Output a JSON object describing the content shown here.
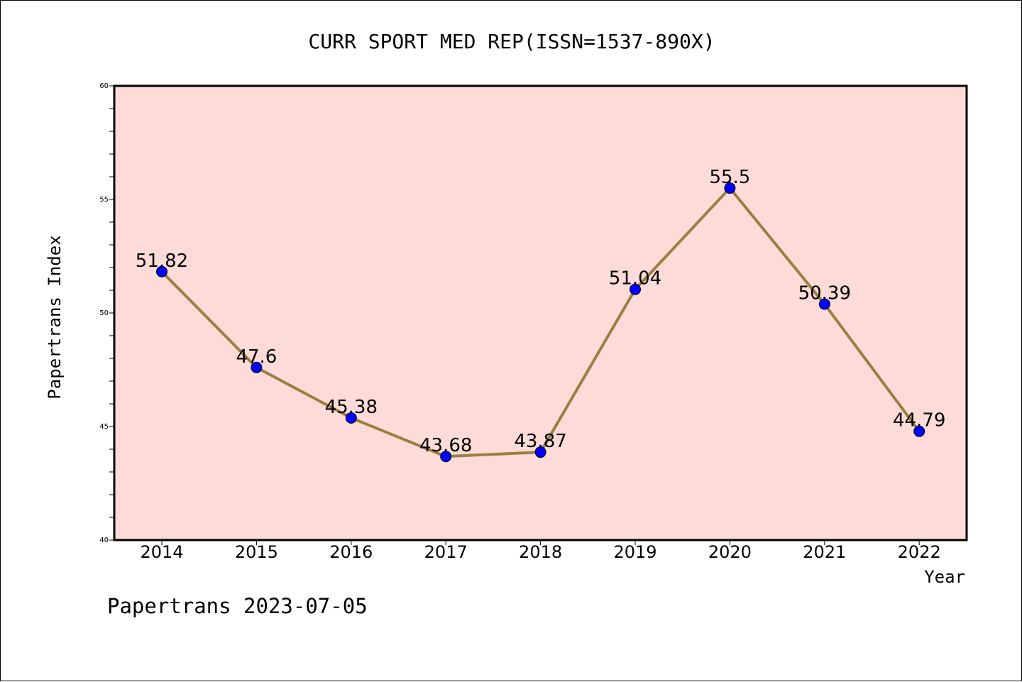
{
  "chart_data": {
    "type": "line",
    "title": "CURR SPORT MED REP(ISSN=1537-890X)",
    "xlabel": "Year",
    "ylabel": "Papertrans Index",
    "categories": [
      "2014",
      "2015",
      "2016",
      "2017",
      "2018",
      "2019",
      "2020",
      "2021",
      "2022"
    ],
    "series": [
      {
        "values": [
          51.82,
          47.6,
          45.38,
          43.68,
          43.87,
          51.04,
          55.5,
          50.39,
          44.79
        ],
        "labels": [
          "51.82",
          "47.6",
          "45.38",
          "43.68",
          "43.87",
          "51.04",
          "55.5",
          "50.39",
          "44.79"
        ]
      }
    ],
    "ylim": [
      40,
      60
    ],
    "yticks": [
      "40",
      "45",
      "50",
      "55",
      "60"
    ],
    "grid": false,
    "colors": {
      "plot_background": "#fddbd9",
      "line": "#9a8040",
      "marker": "#0000ff"
    }
  },
  "footer": {
    "text": "Papertrans 2023-07-05"
  }
}
